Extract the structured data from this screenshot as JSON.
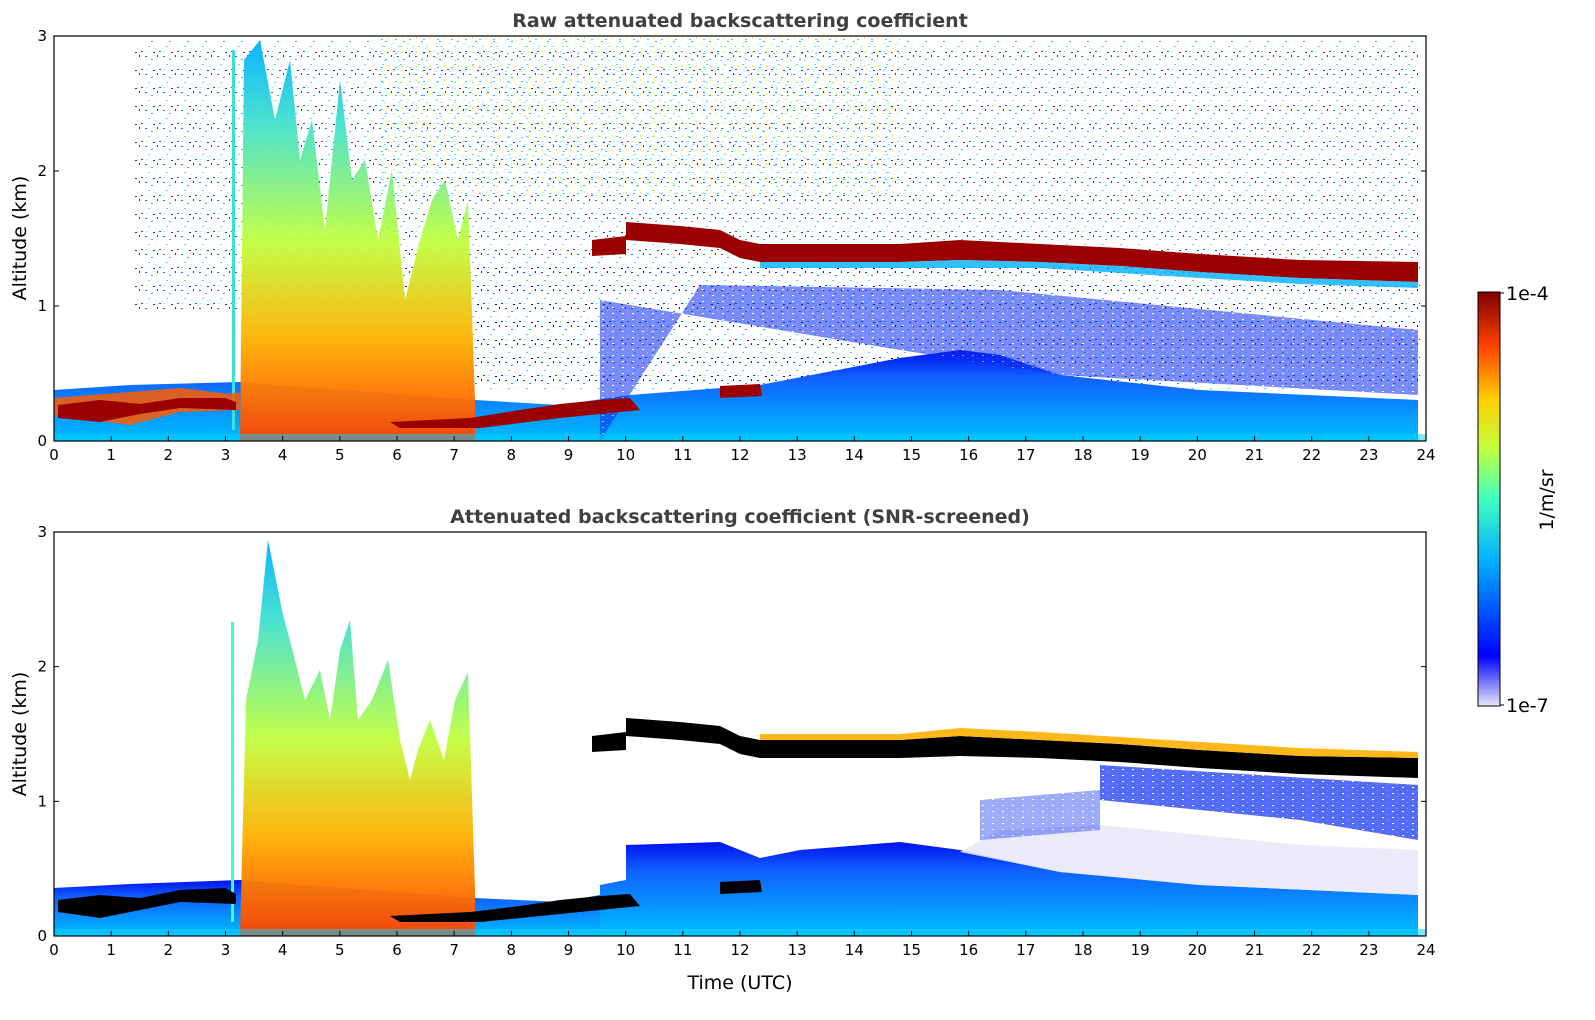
{
  "chart_data": [
    {
      "type": "heatmap",
      "title": "Raw attenuated backscattering coefficient",
      "xlabel": "",
      "ylabel": "Altitude (km)",
      "xlim": [
        0,
        24
      ],
      "ylim": [
        0,
        3
      ],
      "xticks": [
        "0",
        "1",
        "2",
        "3",
        "4",
        "5",
        "6",
        "7",
        "8",
        "9",
        "10",
        "11",
        "12",
        "13",
        "14",
        "15",
        "16",
        "17",
        "18",
        "19",
        "20",
        "21",
        "22",
        "23",
        "24"
      ],
      "yticks": [
        "0",
        "1",
        "2",
        "3"
      ],
      "features": [
        {
          "name": "boundary-layer-top",
          "x": [
            0,
            3.2,
            7.4,
            10,
            12.4
          ],
          "y": [
            0.28,
            0.28,
            0.2,
            0.28,
            0.38
          ]
        },
        {
          "name": "elevated-cloud-layer",
          "x": [
            9.4,
            10,
            11.5,
            12,
            16,
            20,
            23.8
          ],
          "y": [
            1.45,
            1.57,
            1.52,
            1.4,
            1.42,
            1.35,
            1.25
          ]
        },
        {
          "name": "precipitation-plumes",
          "x_range": [
            3.2,
            7.4
          ],
          "top_km": 3.0
        }
      ]
    },
    {
      "type": "heatmap",
      "title": "Attenuated backscattering coefficient (SNR-screened)",
      "xlabel": "Time (UTC)",
      "ylabel": "Altitude (km)",
      "xlim": [
        0,
        24
      ],
      "ylim": [
        0,
        3
      ],
      "xticks": [
        "0",
        "1",
        "2",
        "3",
        "4",
        "5",
        "6",
        "7",
        "8",
        "9",
        "10",
        "11",
        "12",
        "13",
        "14",
        "15",
        "16",
        "17",
        "18",
        "19",
        "20",
        "21",
        "22",
        "23",
        "24"
      ],
      "yticks": [
        "0",
        "1",
        "2",
        "3"
      ],
      "features": [
        {
          "name": "boundary-layer-top",
          "x": [
            0,
            3.2,
            7.4,
            10,
            12.4
          ],
          "y": [
            0.28,
            0.28,
            0.2,
            0.28,
            0.38
          ]
        },
        {
          "name": "elevated-cloud-layer",
          "x": [
            9.4,
            10,
            11.5,
            12,
            16,
            20,
            23.8
          ],
          "y": [
            1.45,
            1.57,
            1.52,
            1.4,
            1.42,
            1.35,
            1.25
          ]
        },
        {
          "name": "precipitation-plumes",
          "x_range": [
            3.2,
            7.4
          ],
          "top_km": 2.95
        }
      ]
    }
  ],
  "colorbar": {
    "label": "1/m/sr",
    "max_label": "1e-4",
    "min_label": "1e-7",
    "scale": "log",
    "colormap": "jet",
    "colors": [
      "#e8e8f8",
      "#0000ff",
      "#00b0ff",
      "#40ffc0",
      "#c0ff40",
      "#ffd000",
      "#ff4000",
      "#800000"
    ]
  }
}
